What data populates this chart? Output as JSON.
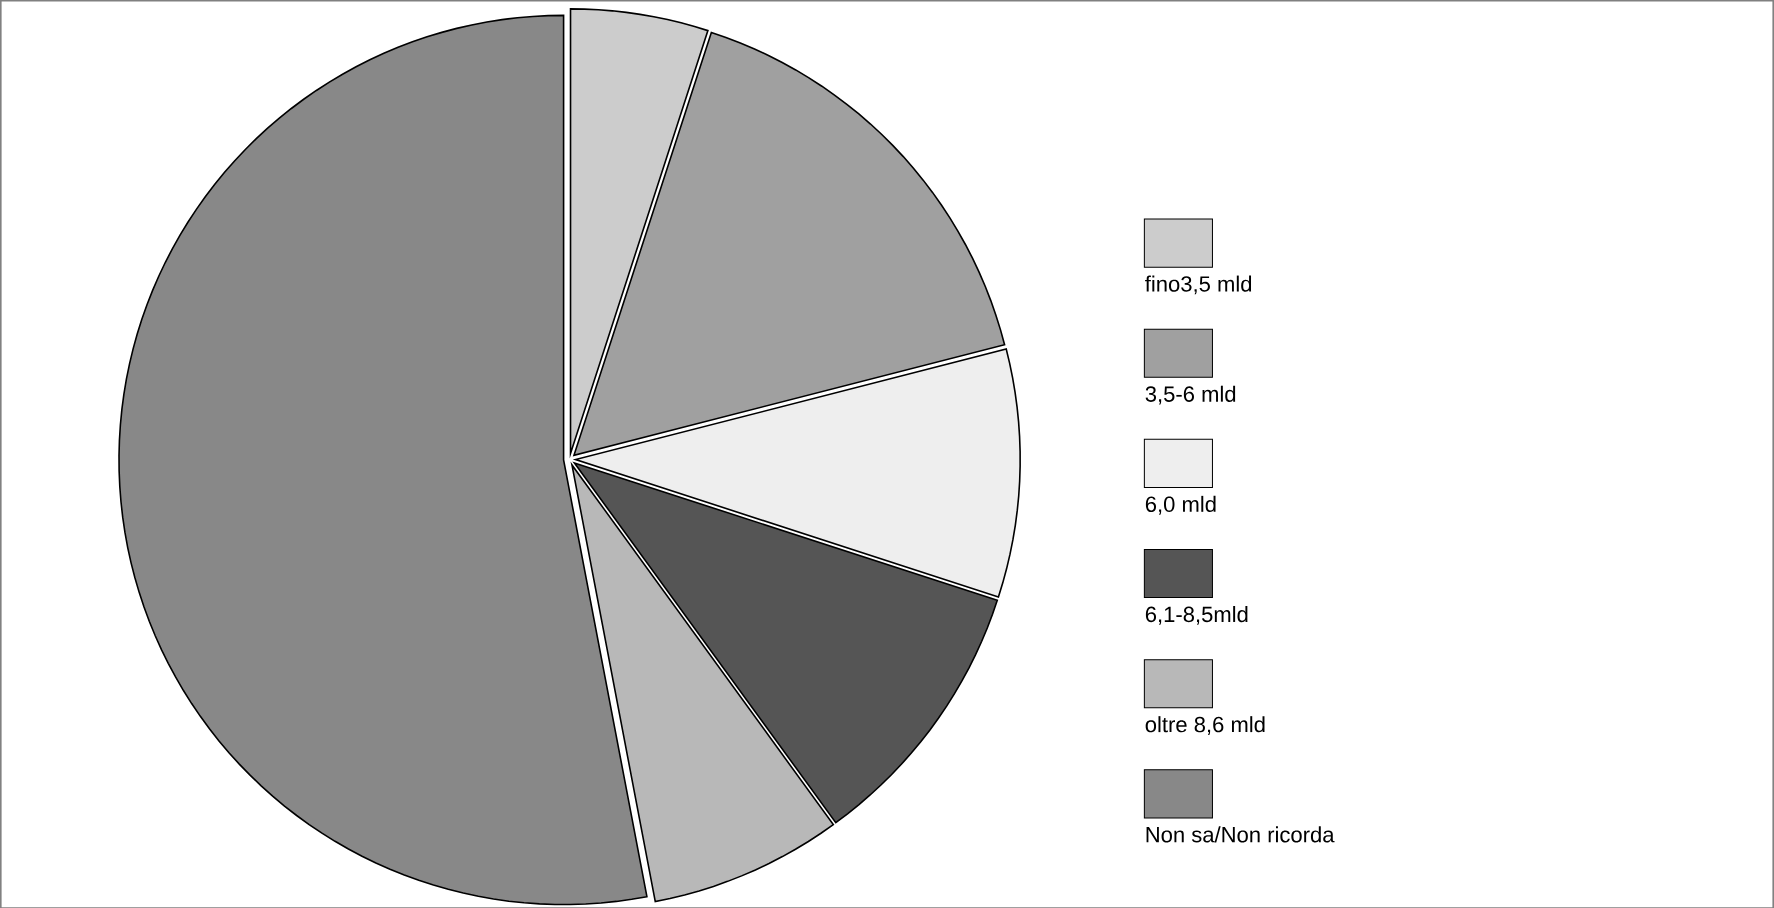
{
  "chart_data": {
    "type": "pie",
    "categories": [
      "fino3,5  mld",
      "3,5-6 mld",
      "6,0 mld",
      "6,1-8,5mld",
      "oltre 8,6 mld",
      "Non sa/Non ricorda"
    ],
    "values": [
      5,
      16,
      9,
      10,
      7,
      53
    ],
    "colors": [
      "#cccccc",
      "#a0a0a0",
      "#eeeeee",
      "#555555",
      "#b8b8b8",
      "#888888"
    ],
    "legend": "right"
  }
}
